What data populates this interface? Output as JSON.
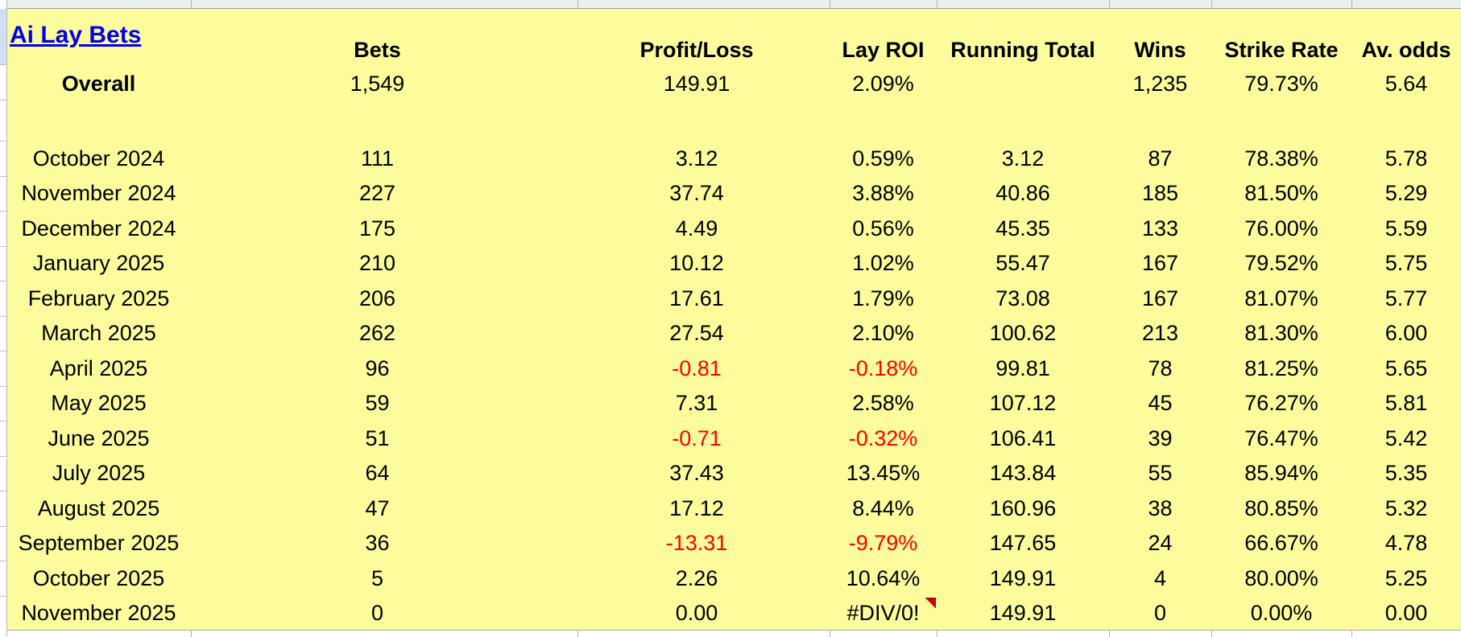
{
  "title": "Ai Lay Bets",
  "columns": [
    "Bets",
    "Profit/Loss",
    "Lay ROI",
    "Running Total",
    "Wins",
    "Strike Rate",
    "Av. odds"
  ],
  "overall": {
    "label": "Overall",
    "bets": "1,549",
    "profit_loss": "149.91",
    "lay_roi": "2.09%",
    "running_total": "",
    "wins": "1,235",
    "strike_rate": "79.73%",
    "av_odds": "5.64"
  },
  "rows": [
    {
      "month": "October 2024",
      "bets": "111",
      "profit_loss": "3.12",
      "lay_roi": "0.59%",
      "running_total": "3.12",
      "wins": "87",
      "strike_rate": "78.38%",
      "av_odds": "5.78"
    },
    {
      "month": "November 2024",
      "bets": "227",
      "profit_loss": "37.74",
      "lay_roi": "3.88%",
      "running_total": "40.86",
      "wins": "185",
      "strike_rate": "81.50%",
      "av_odds": "5.29"
    },
    {
      "month": "December 2024",
      "bets": "175",
      "profit_loss": "4.49",
      "lay_roi": "0.56%",
      "running_total": "45.35",
      "wins": "133",
      "strike_rate": "76.00%",
      "av_odds": "5.59"
    },
    {
      "month": "January 2025",
      "bets": "210",
      "profit_loss": "10.12",
      "lay_roi": "1.02%",
      "running_total": "55.47",
      "wins": "167",
      "strike_rate": "79.52%",
      "av_odds": "5.75"
    },
    {
      "month": "February 2025",
      "bets": "206",
      "profit_loss": "17.61",
      "lay_roi": "1.79%",
      "running_total": "73.08",
      "wins": "167",
      "strike_rate": "81.07%",
      "av_odds": "5.77"
    },
    {
      "month": "March 2025",
      "bets": "262",
      "profit_loss": "27.54",
      "lay_roi": "2.10%",
      "running_total": "100.62",
      "wins": "213",
      "strike_rate": "81.30%",
      "av_odds": "6.00"
    },
    {
      "month": "April 2025",
      "bets": "96",
      "profit_loss": "-0.81",
      "lay_roi": "-0.18%",
      "running_total": "99.81",
      "wins": "78",
      "strike_rate": "81.25%",
      "av_odds": "5.65"
    },
    {
      "month": "May 2025",
      "bets": "59",
      "profit_loss": "7.31",
      "lay_roi": "2.58%",
      "running_total": "107.12",
      "wins": "45",
      "strike_rate": "76.27%",
      "av_odds": "5.81"
    },
    {
      "month": "June 2025",
      "bets": "51",
      "profit_loss": "-0.71",
      "lay_roi": "-0.32%",
      "running_total": "106.41",
      "wins": "39",
      "strike_rate": "76.47%",
      "av_odds": "5.42"
    },
    {
      "month": "July 2025",
      "bets": "64",
      "profit_loss": "37.43",
      "lay_roi": "13.45%",
      "running_total": "143.84",
      "wins": "55",
      "strike_rate": "85.94%",
      "av_odds": "5.35"
    },
    {
      "month": "August 2025",
      "bets": "47",
      "profit_loss": "17.12",
      "lay_roi": "8.44%",
      "running_total": "160.96",
      "wins": "38",
      "strike_rate": "80.85%",
      "av_odds": "5.32"
    },
    {
      "month": "September 2025",
      "bets": "36",
      "profit_loss": "-13.31",
      "lay_roi": "-9.79%",
      "running_total": "147.65",
      "wins": "24",
      "strike_rate": "66.67%",
      "av_odds": "4.78"
    },
    {
      "month": "October 2025",
      "bets": "5",
      "profit_loss": "2.26",
      "lay_roi": "10.64%",
      "running_total": "149.91",
      "wins": "4",
      "strike_rate": "80.00%",
      "av_odds": "5.25"
    },
    {
      "month": "November 2025",
      "bets": "0",
      "profit_loss": "0.00",
      "lay_roi": "#DIV/0!",
      "running_total": "149.91",
      "wins": "0",
      "strike_rate": "0.00%",
      "av_odds": "0.00",
      "note_on_lay_roi": true
    }
  ],
  "colors": {
    "sheet_yellow": "#fcfc9d",
    "surrounding_mint": "#e6f2eb",
    "row_header_selection_blue": "#cfe1f3",
    "link_blue": "#0000ee",
    "negative_red": "#ff0000",
    "note_marker_red": "#c00000"
  }
}
